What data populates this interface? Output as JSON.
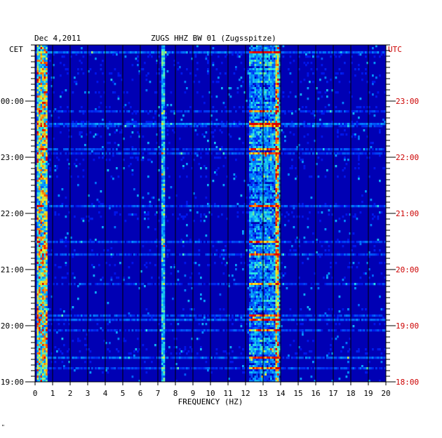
{
  "header": {
    "date": "Dec 4,2011",
    "station": "ZUGS HHZ BW 01 (Zugsspitze)",
    "left_zone": "CET",
    "right_zone": "UTC",
    "footer_mark": "\""
  },
  "chart_data": {
    "type": "heatmap",
    "title": "ZUGS HHZ BW 01 (Zugsspitze)",
    "date": "Dec 4,2011",
    "xlabel": "FREQUENCY (HZ)",
    "xlim": [
      0,
      20
    ],
    "x_ticks": [
      "0",
      "1",
      "2",
      "3",
      "4",
      "5",
      "6",
      "7",
      "8",
      "9",
      "10",
      "11",
      "12",
      "13",
      "14",
      "15",
      "16",
      "17",
      "18",
      "19",
      "20"
    ],
    "y_left_label": "CET",
    "y_right_label": "UTC",
    "y_left_ticks": [
      "00:00",
      "23:00",
      "22:00",
      "21:00",
      "20:00",
      "19:00"
    ],
    "y_right_ticks": [
      "23:00",
      "22:00",
      "21:00",
      "20:00",
      "19:00",
      "18:00"
    ],
    "colors": {
      "background": "#0000b4",
      "right_axis_text": "#cc0000",
      "grid": "#000000"
    },
    "features": {
      "low_freq_band_hz": [
        0.2,
        0.6
      ],
      "spectral_line_hz": 7.3,
      "microseism_band_hz": [
        12.2,
        14.0
      ],
      "strong_line_hz": 13.8
    }
  }
}
